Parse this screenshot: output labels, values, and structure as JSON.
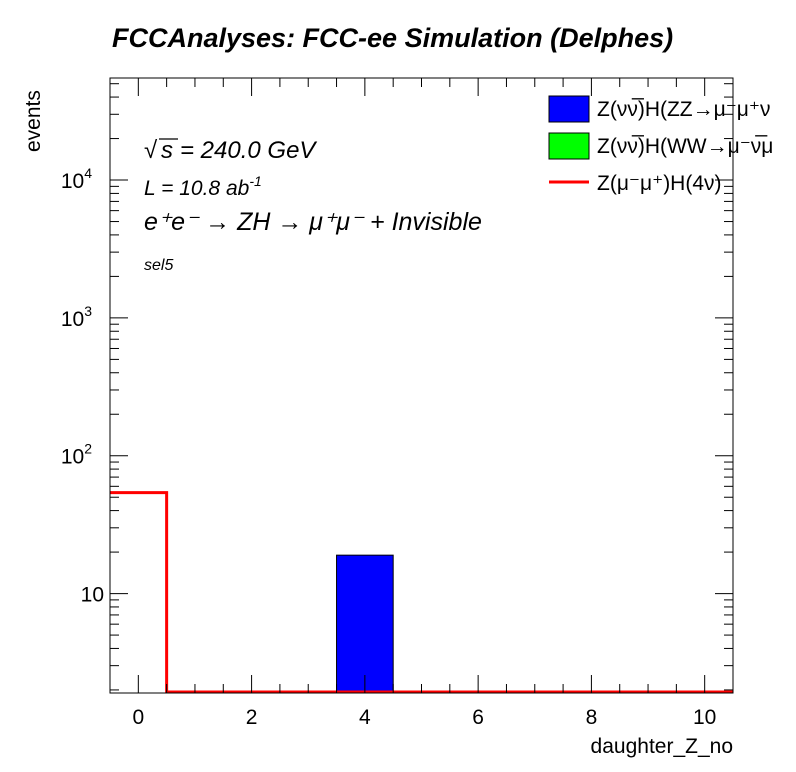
{
  "chart_data": {
    "type": "bar",
    "title": "FCCAnalyses: FCC-ee Simulation (Delphes)",
    "xlabel": "daughter_Z_no",
    "ylabel": "events",
    "xlim": [
      -0.5,
      10.5
    ],
    "ylim": [
      1.9,
      55000
    ],
    "yscale": "log",
    "grid": false,
    "legend_placement": "top-right",
    "x_ticks": [
      "0",
      "2",
      "4",
      "6",
      "8",
      "10"
    ],
    "y_ticks": [
      {
        "value": 10,
        "label": "10"
      },
      {
        "value": 100,
        "label": "10",
        "exp": "2"
      },
      {
        "value": 1000,
        "label": "10",
        "exp": "3"
      },
      {
        "value": 10000,
        "label": "10",
        "exp": "4"
      }
    ],
    "bin_edges": [
      -0.5,
      0.5,
      1.5,
      2.5,
      3.5,
      4.5,
      5.5,
      6.5,
      7.5,
      8.5,
      9.5,
      10.5
    ],
    "series": [
      {
        "name": "Z(νν̅)H(ZZ→μ⁻μ⁺ν",
        "kind": "filled",
        "color": "#0000ff",
        "values": [
          0,
          0,
          0,
          0,
          19,
          0,
          0,
          0,
          0,
          0,
          0
        ]
      },
      {
        "name": "Z(νν̅)H(WW→μ⁻ν̅μ",
        "kind": "filled",
        "color": "#00ff00",
        "values": [
          0,
          0,
          0,
          0,
          0,
          0,
          0,
          0,
          0,
          0,
          0
        ]
      },
      {
        "name": "Z(μ⁻μ⁺)H(4ν)",
        "kind": "line",
        "color": "#ff0000",
        "values": [
          54,
          0,
          0,
          0,
          0,
          0,
          0,
          0,
          0,
          0,
          0
        ]
      }
    ],
    "annotations": {
      "sqrt_s": "= 240.0 GeV",
      "lumi": "L = 10.8 ab",
      "lumi_exp": "-1",
      "process": "e⁺e⁻ → ZH → μ⁺μ⁻ + Invisible",
      "selection": "sel5"
    }
  }
}
